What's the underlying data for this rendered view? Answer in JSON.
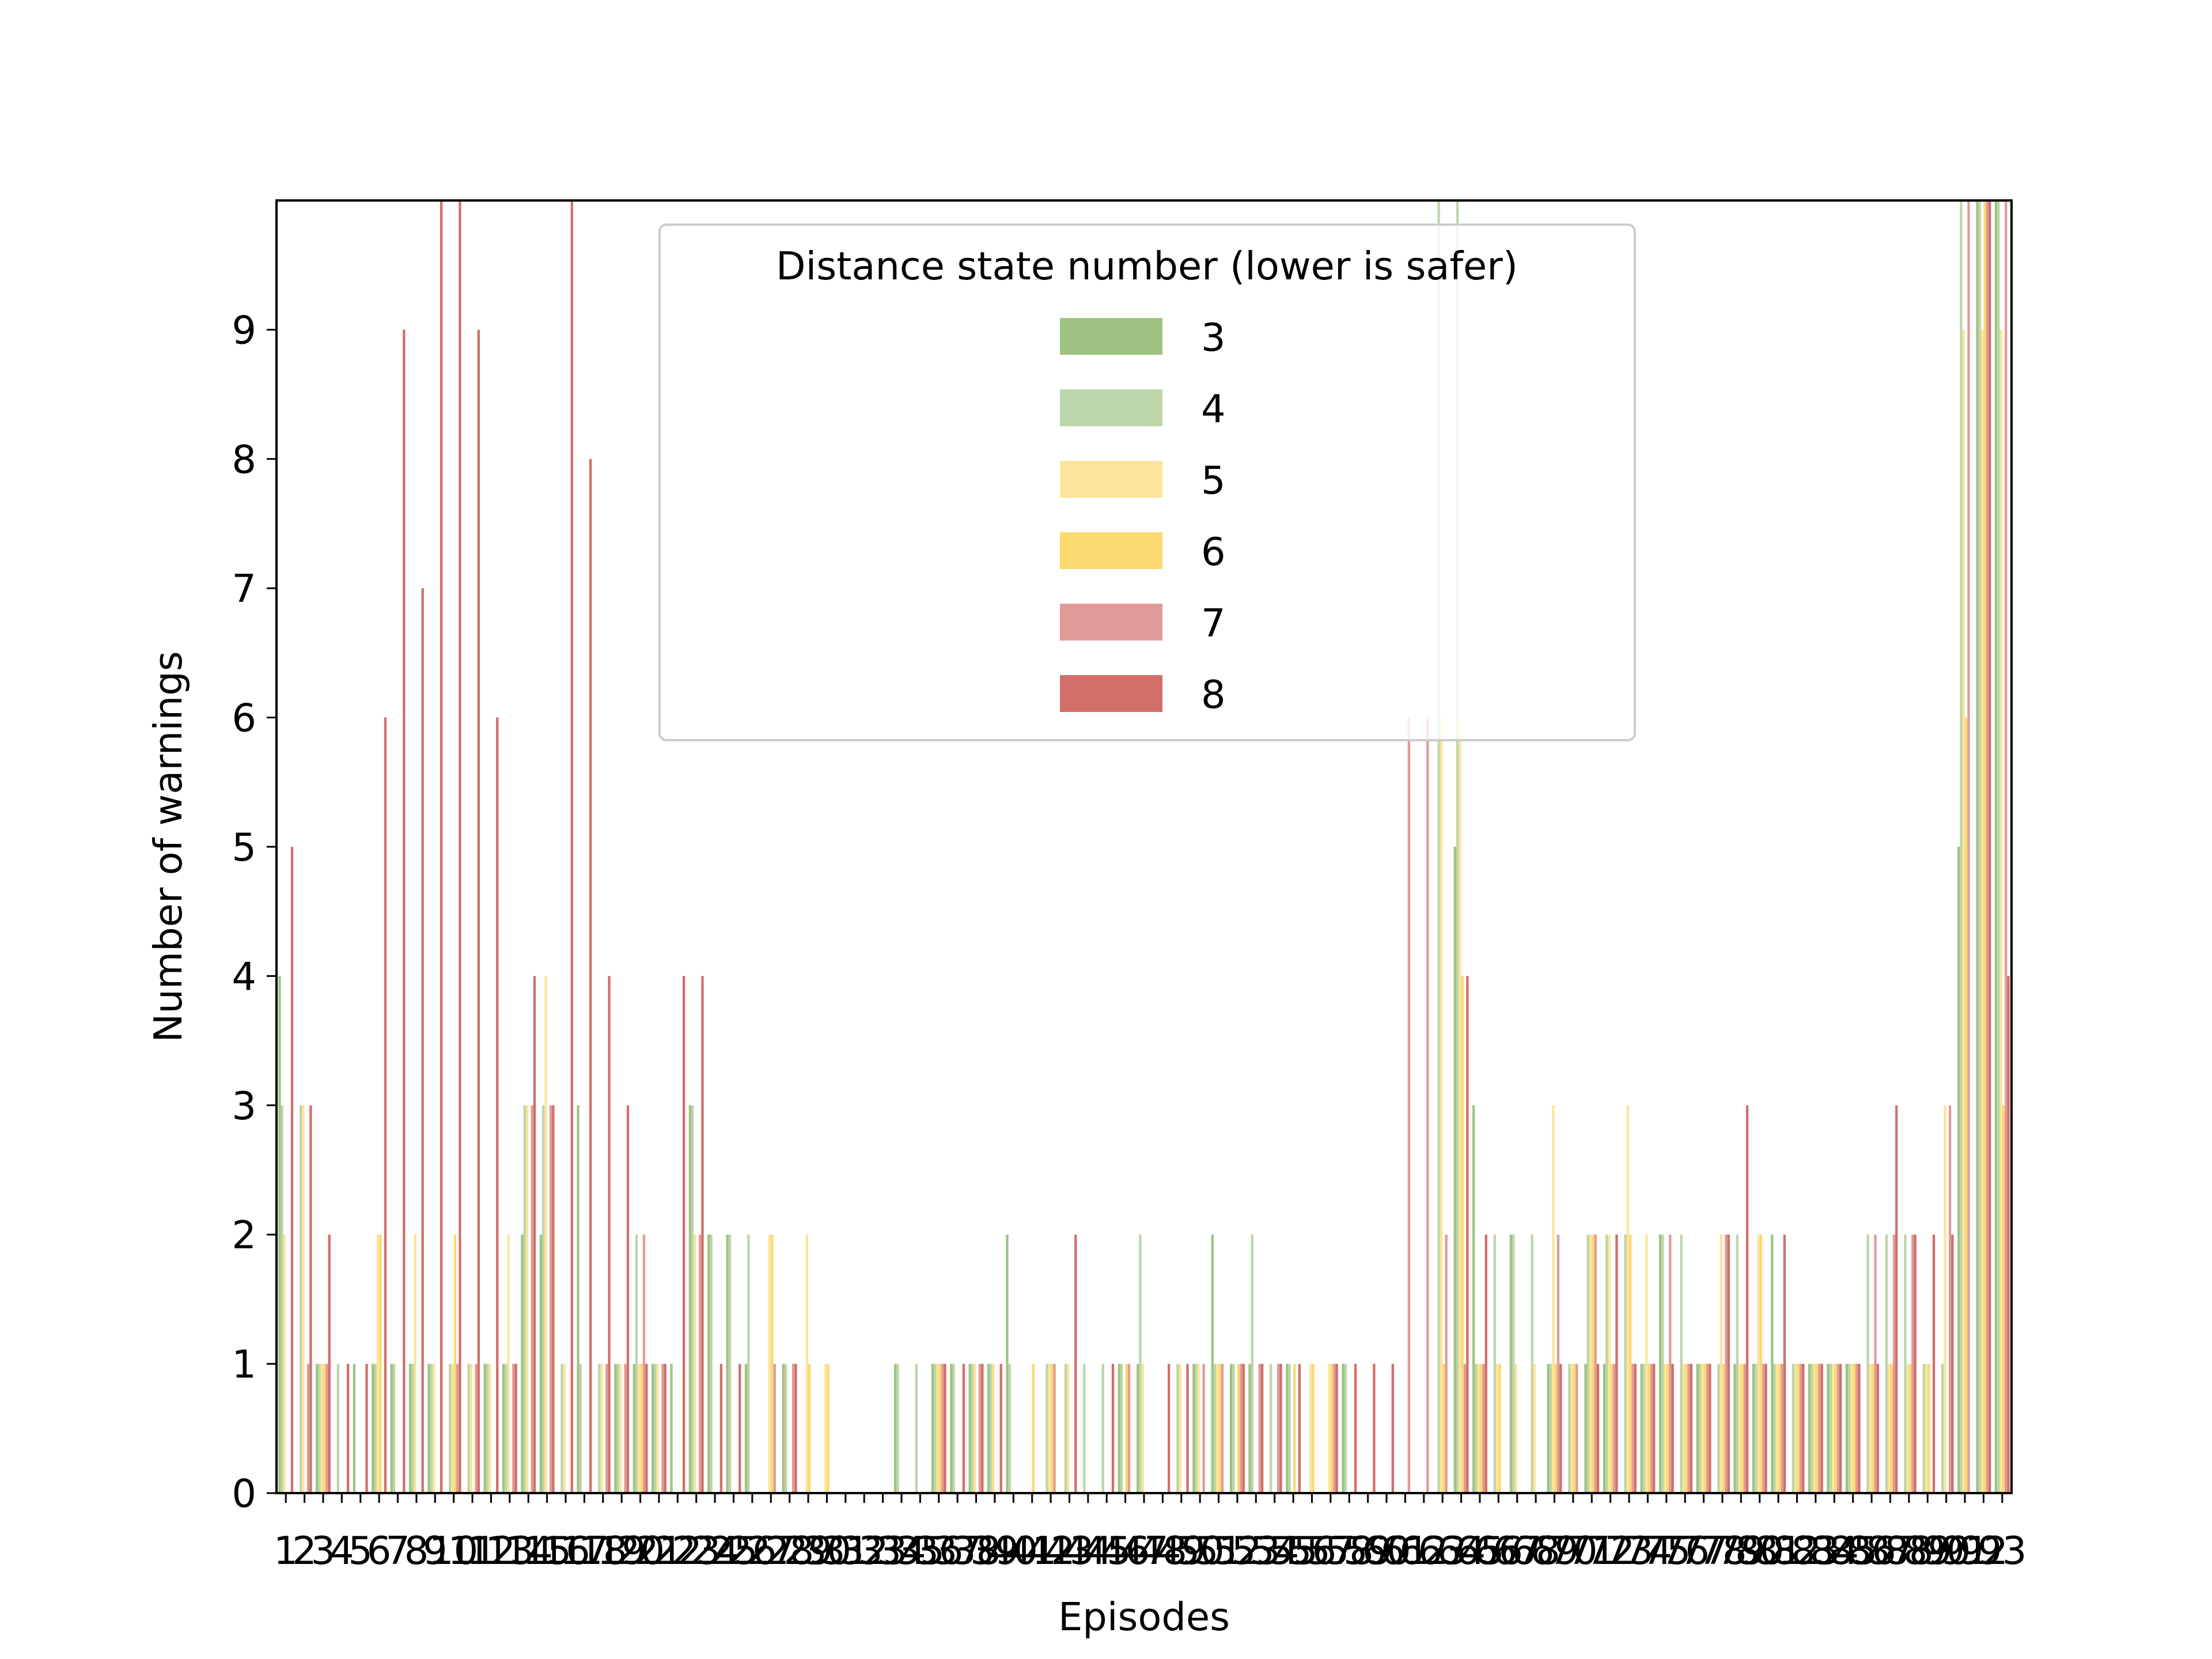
{
  "chart_data": {
    "type": "bar",
    "title": "",
    "xlabel": "Episodes",
    "ylabel": "Number of warnings",
    "ylim": [
      0,
      10
    ],
    "yticks": [
      0,
      1,
      2,
      3,
      4,
      5,
      6,
      7,
      8,
      9
    ],
    "grid": false,
    "legend": {
      "title": "Distance state number (lower is safer)",
      "placement": "top-center"
    },
    "categories": [
      "1",
      "2",
      "3",
      "4",
      "5",
      "6",
      "7",
      "8",
      "9",
      "10",
      "11",
      "12",
      "13",
      "14",
      "15",
      "16",
      "17",
      "18",
      "19",
      "20",
      "21",
      "22",
      "23",
      "24",
      "25",
      "26",
      "27",
      "28",
      "29",
      "30",
      "31",
      "32",
      "33",
      "34",
      "35",
      "36",
      "37",
      "38",
      "39",
      "40",
      "41",
      "42",
      "43",
      "44",
      "45",
      "46",
      "47",
      "48",
      "49",
      "50",
      "51",
      "52",
      "53",
      "54",
      "55",
      "56",
      "57",
      "58",
      "59",
      "60",
      "61",
      "62",
      "63",
      "64",
      "65",
      "66",
      "67",
      "68",
      "69",
      "70",
      "71",
      "72",
      "73",
      "74",
      "75",
      "76",
      "77",
      "78",
      "79",
      "80",
      "81",
      "82",
      "83",
      "84",
      "85",
      "86",
      "87",
      "88",
      "89",
      "90",
      "91",
      "92",
      "93"
    ],
    "series": [
      {
        "name": "3",
        "color": "#9fc284",
        "values": [
          4,
          0,
          1,
          0,
          1,
          1,
          1,
          1,
          1,
          0,
          0,
          1,
          1,
          2,
          2,
          0,
          3,
          0,
          1,
          1,
          1,
          1,
          3,
          2,
          2,
          1,
          0,
          1,
          0,
          0,
          0,
          0,
          0,
          1,
          0,
          1,
          1,
          1,
          1,
          2,
          0,
          0,
          0,
          0,
          0,
          1,
          1,
          0,
          0,
          1,
          2,
          1,
          1,
          0,
          1,
          0,
          0,
          1,
          0,
          0,
          0,
          0,
          0,
          5,
          3,
          0,
          2,
          0,
          1,
          0,
          1,
          1,
          0,
          1,
          2,
          0,
          1,
          0,
          1,
          1,
          2,
          0,
          1,
          1,
          1,
          0,
          0,
          0,
          0,
          0,
          5,
          10,
          10
        ]
      },
      {
        "name": "4",
        "color": "#bcd6a9",
        "values": [
          3,
          3,
          1,
          1,
          0,
          1,
          1,
          1,
          1,
          1,
          1,
          1,
          1,
          3,
          3,
          1,
          1,
          1,
          1,
          2,
          1,
          0,
          3,
          2,
          2,
          2,
          0,
          1,
          0,
          0,
          0,
          0,
          0,
          1,
          1,
          1,
          1,
          1,
          1,
          1,
          0,
          1,
          1,
          1,
          1,
          1,
          2,
          0,
          1,
          1,
          1,
          1,
          2,
          1,
          1,
          0,
          0,
          1,
          0,
          0,
          0,
          0,
          10,
          10,
          1,
          2,
          2,
          2,
          1,
          1,
          2,
          2,
          2,
          1,
          2,
          2,
          1,
          1,
          2,
          1,
          1,
          1,
          1,
          1,
          1,
          2,
          2,
          2,
          1,
          1,
          10,
          10,
          10
        ]
      },
      {
        "name": "5",
        "color": "#fce49b",
        "values": [
          2,
          3,
          1,
          0,
          0,
          2,
          0,
          2,
          1,
          1,
          1,
          1,
          2,
          3,
          4,
          1,
          0,
          1,
          1,
          1,
          1,
          0,
          2,
          0,
          0,
          0,
          2,
          0,
          2,
          1,
          0,
          0,
          0,
          0,
          0,
          1,
          0,
          1,
          1,
          0,
          0,
          1,
          1,
          0,
          0,
          0,
          1,
          0,
          1,
          1,
          1,
          0,
          0,
          0,
          0,
          1,
          1,
          0,
          0,
          0,
          0,
          0,
          6,
          6,
          1,
          1,
          1,
          1,
          3,
          1,
          2,
          2,
          3,
          2,
          1,
          1,
          1,
          2,
          1,
          2,
          1,
          1,
          1,
          1,
          1,
          1,
          1,
          1,
          1,
          3,
          9,
          9,
          9
        ]
      },
      {
        "name": "6",
        "color": "#fada71",
        "values": [
          0,
          0,
          1,
          0,
          0,
          2,
          0,
          0,
          0,
          2,
          0,
          0,
          0,
          0,
          0,
          0,
          0,
          0,
          0,
          1,
          0,
          0,
          0,
          0,
          0,
          0,
          2,
          0,
          1,
          1,
          0,
          0,
          0,
          0,
          0,
          1,
          0,
          0,
          0,
          0,
          1,
          1,
          0,
          0,
          0,
          1,
          0,
          0,
          0,
          0,
          1,
          1,
          0,
          0,
          1,
          1,
          1,
          0,
          0,
          0,
          0,
          0,
          1,
          4,
          1,
          1,
          0,
          0,
          1,
          1,
          2,
          1,
          2,
          1,
          1,
          1,
          1,
          1,
          1,
          2,
          1,
          1,
          1,
          1,
          1,
          1,
          1,
          1,
          1,
          0,
          6,
          10,
          3
        ]
      },
      {
        "name": "7",
        "color": "#e09b98",
        "values": [
          0,
          1,
          1,
          0,
          0,
          0,
          0,
          0,
          0,
          1,
          1,
          0,
          1,
          3,
          3,
          0,
          0,
          1,
          1,
          2,
          1,
          0,
          2,
          0,
          0,
          0,
          1,
          1,
          0,
          0,
          0,
          0,
          0,
          0,
          0,
          1,
          0,
          1,
          0,
          0,
          0,
          1,
          0,
          0,
          0,
          1,
          0,
          0,
          0,
          1,
          1,
          1,
          1,
          1,
          0,
          0,
          1,
          0,
          0,
          0,
          6,
          6,
          2,
          1,
          1,
          0,
          0,
          0,
          2,
          1,
          2,
          1,
          1,
          1,
          2,
          1,
          1,
          2,
          1,
          1,
          1,
          1,
          1,
          1,
          1,
          2,
          2,
          2,
          0,
          3,
          10,
          10,
          10
        ]
      },
      {
        "name": "8",
        "color": "#d26e6a",
        "values": [
          5,
          3,
          2,
          1,
          1,
          6,
          9,
          7,
          10,
          10,
          9,
          6,
          1,
          4,
          3,
          10,
          8,
          4,
          3,
          1,
          1,
          4,
          4,
          1,
          1,
          0,
          0,
          1,
          0,
          0,
          0,
          0,
          0,
          0,
          0,
          1,
          1,
          1,
          1,
          0,
          0,
          0,
          2,
          0,
          1,
          0,
          0,
          1,
          1,
          0,
          0,
          1,
          1,
          1,
          1,
          0,
          1,
          1,
          1,
          1,
          0,
          0,
          0,
          4,
          2,
          0,
          0,
          0,
          1,
          0,
          1,
          2,
          1,
          1,
          1,
          1,
          1,
          2,
          3,
          1,
          2,
          1,
          1,
          1,
          1,
          1,
          3,
          2,
          2,
          2,
          0,
          10,
          4
        ]
      }
    ]
  }
}
